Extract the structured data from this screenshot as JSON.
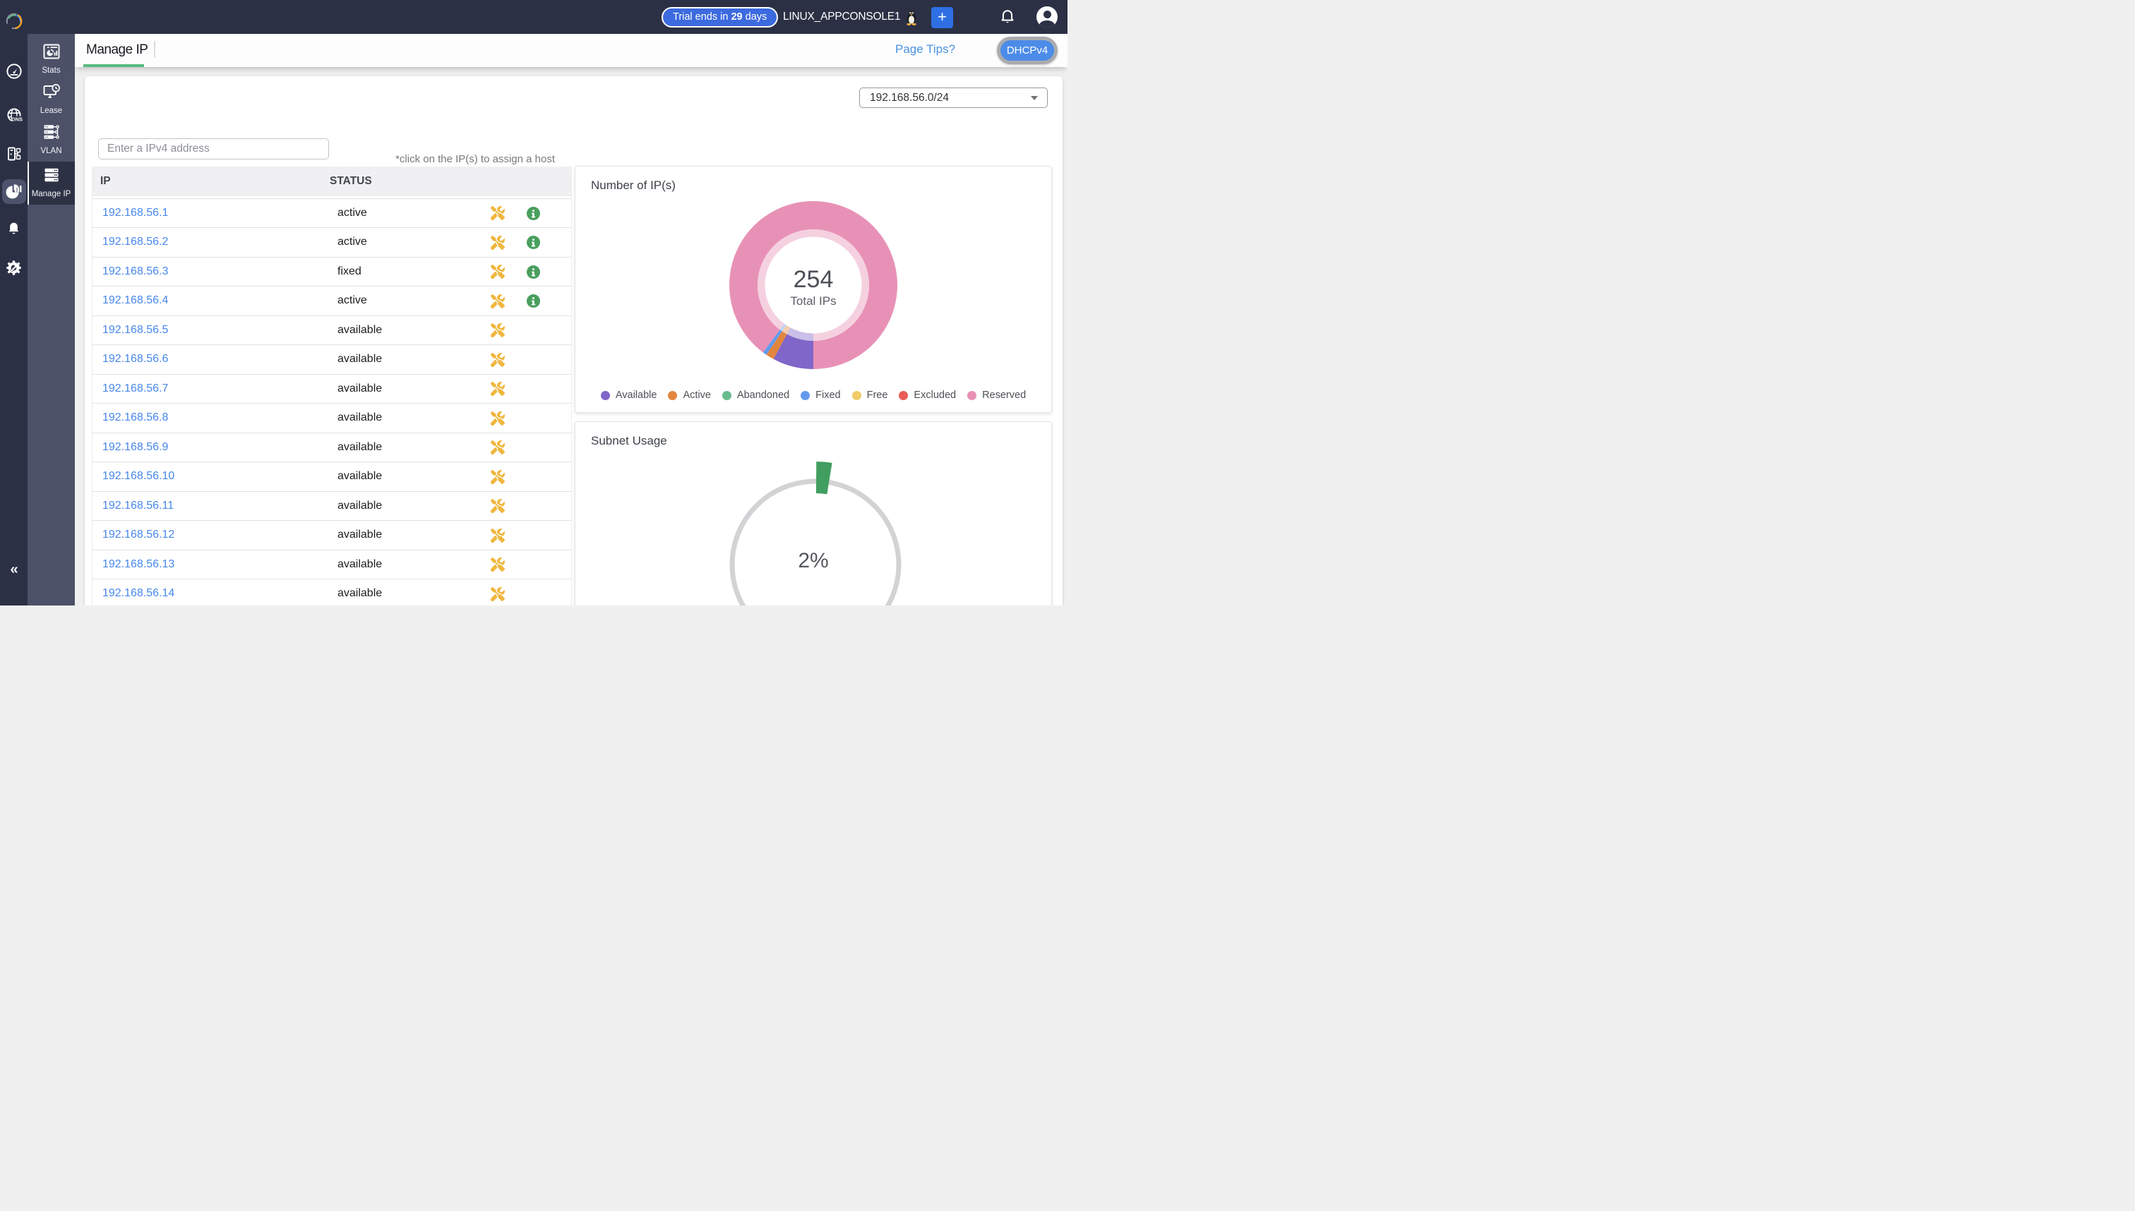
{
  "navbar": {
    "trial_prefix": "Trial ends in ",
    "trial_days": "29",
    "trial_suffix": " days",
    "console_name": "LINUX_APPCONSOLE1",
    "add_button_label": "+"
  },
  "sidebar_primary": {
    "items": [
      {
        "icon": "speedometer"
      },
      {
        "icon": "globe-dns"
      },
      {
        "icon": "server-network"
      },
      {
        "icon": "pie-stats",
        "selected": true
      },
      {
        "icon": "bell"
      },
      {
        "icon": "gear-wrench"
      }
    ],
    "collapse_label": "«"
  },
  "sidebar_secondary": {
    "items": [
      {
        "label": "Stats",
        "icon": "stats-window"
      },
      {
        "label": "Lease",
        "icon": "monitor-clock"
      },
      {
        "label": "VLAN",
        "icon": "vlan-servers"
      },
      {
        "label": "Manage IP",
        "icon": "server-stack",
        "selected": true
      }
    ]
  },
  "tabbar": {
    "active_tab": "Manage IP",
    "page_tips_link": "Page Tips?",
    "protocol_badge": "DHCPv4"
  },
  "toolbar": {
    "subnet_select_value": "192.168.56.0/24",
    "search_placeholder": "Enter a IPv4 address",
    "assign_note": "*click on the IP(s) to assign a host"
  },
  "table": {
    "columns": [
      "IP",
      "STATUS"
    ],
    "rows": [
      {
        "ip": "192.168.56.1",
        "status": "active",
        "has_info": true
      },
      {
        "ip": "192.168.56.2",
        "status": "active",
        "has_info": true
      },
      {
        "ip": "192.168.56.3",
        "status": "fixed",
        "has_info": true
      },
      {
        "ip": "192.168.56.4",
        "status": "active",
        "has_info": true
      },
      {
        "ip": "192.168.56.5",
        "status": "available",
        "has_info": false
      },
      {
        "ip": "192.168.56.6",
        "status": "available",
        "has_info": false
      },
      {
        "ip": "192.168.56.7",
        "status": "available",
        "has_info": false
      },
      {
        "ip": "192.168.56.8",
        "status": "available",
        "has_info": false
      },
      {
        "ip": "192.168.56.9",
        "status": "available",
        "has_info": false
      },
      {
        "ip": "192.168.56.10",
        "status": "available",
        "has_info": false
      },
      {
        "ip": "192.168.56.11",
        "status": "available",
        "has_info": false
      },
      {
        "ip": "192.168.56.12",
        "status": "available",
        "has_info": false
      },
      {
        "ip": "192.168.56.13",
        "status": "available",
        "has_info": false
      },
      {
        "ip": "192.168.56.14",
        "status": "available",
        "has_info": false
      }
    ]
  },
  "chart_data": [
    {
      "type": "pie",
      "title": "Number of IP(s)",
      "subtype": "donut",
      "center_value": "254",
      "center_label": "Total IPs",
      "total": 254,
      "start_angle_deg": 180,
      "legend_position": "bottom",
      "series": [
        {
          "name": "Available",
          "value": 20,
          "color": "#8066c8"
        },
        {
          "name": "Active",
          "value": 4,
          "color": "#e2853d"
        },
        {
          "name": "Abandoned",
          "value": 0,
          "color": "#68bc8c"
        },
        {
          "name": "Fixed",
          "value": 2,
          "color": "#639aec"
        },
        {
          "name": "Free",
          "value": 0,
          "color": "#f0cb66"
        },
        {
          "name": "Excluded",
          "value": 0,
          "color": "#ea5c55"
        },
        {
          "name": "Reserved",
          "value": 228,
          "color": "#e891b6"
        }
      ]
    },
    {
      "type": "gauge",
      "title": "Subnet Usage",
      "value_percent": 2,
      "value_label": "2%",
      "accent_color": "#429e60",
      "track_color": "#d3d3d6"
    }
  ],
  "colors": {
    "navbar_bg": "#2b3045",
    "sidebar_secondary_bg": "#4c5168",
    "selected_item_bg": "#2c3144",
    "accent_green": "#57ba7d",
    "link_blue": "#4a90e2",
    "ip_link_blue": "#4687ec",
    "pill_blue": "#3c6adf",
    "wrench_amber": "#efb73f",
    "info_green": "#499f5e"
  }
}
